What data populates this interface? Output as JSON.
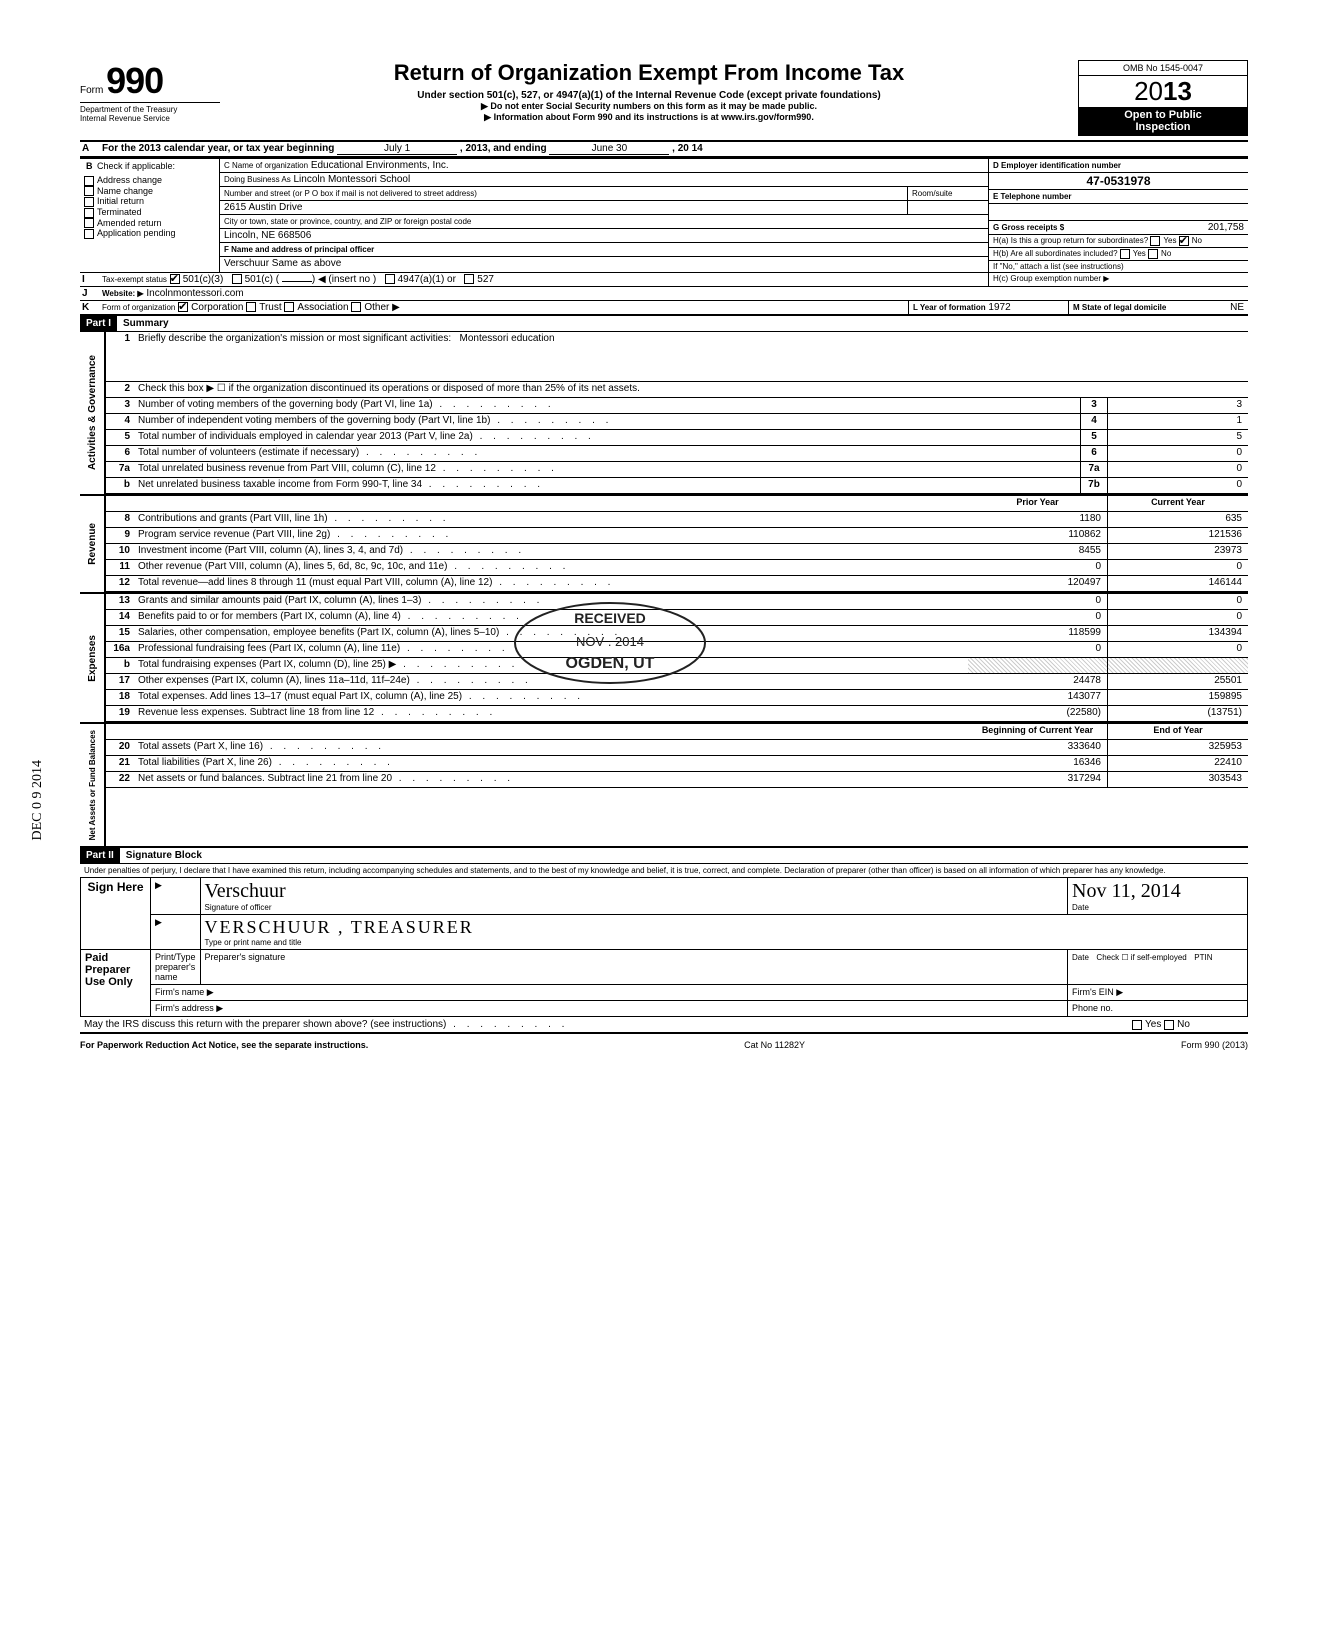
{
  "header": {
    "form_label": "Form",
    "form_number": "990",
    "title": "Return of Organization Exempt From Income Tax",
    "subtitle": "Under section 501(c), 527, or 4947(a)(1) of the Internal Revenue Code (except private foundations)",
    "sub2a": "▶ Do not enter Social Security numbers on this form as it may be made public.",
    "sub2b": "▶ Information about Form 990 and its instructions is at www.irs.gov/form990.",
    "omb": "OMB No 1545-0047",
    "year_prefix": "20",
    "year": "13",
    "open1": "Open to Public",
    "open2": "Inspection",
    "dept1": "Department of the Treasury",
    "dept2": "Internal Revenue Service"
  },
  "lineA": {
    "label": "For the 2013 calendar year, or tax year beginning",
    "begin": "July 1",
    "mid": ", 2013, and ending",
    "end": "June 30",
    "yr": ", 20  14"
  },
  "B": {
    "label": "Check if applicable:",
    "items": [
      "Address change",
      "Name change",
      "Initial return",
      "Terminated",
      "Amended return",
      "Application pending"
    ]
  },
  "C": {
    "label": "C Name of organization",
    "name": "Educational Environments, Inc.",
    "dba_label": "Doing Business As",
    "dba": "Lincoln Montessori School",
    "street_label": "Number and street (or P O  box if mail is not delivered to street address)",
    "street": "2615 Austin Drive",
    "room_label": "Room/suite",
    "city_label": "City or town, state or province, country, and ZIP or foreign postal code",
    "city": "Lincoln, NE 668506",
    "F_label": "F Name and address of principal officer",
    "F_name": "Verschuur  Same as above"
  },
  "D": {
    "label": "D Employer identification number",
    "value": "47-0531978"
  },
  "E": {
    "label": "E Telephone number"
  },
  "G": {
    "label": "G Gross receipts $",
    "value": "201,758"
  },
  "H": {
    "a": "H(a) Is this a group return for subordinates?",
    "b": "H(b) Are all subordinates included?",
    "note": "If \"No,\" attach a list (see instructions)",
    "c": "H(c) Group exemption number ▶",
    "yes": "Yes",
    "no": "No"
  },
  "I": {
    "label": "Tax-exempt status",
    "o1": "501(c)(3)",
    "o2": "501(c) (",
    "o2suf": ") ◀ (insert no )",
    "o3": "4947(a)(1) or",
    "o4": "527"
  },
  "J": {
    "label": "Website: ▶",
    "value": "Incolnmontessori.com"
  },
  "K": {
    "label": "Form of organization",
    "o1": "Corporation",
    "o2": "Trust",
    "o3": "Association",
    "o4": "Other ▶",
    "L_label": "L Year of formation",
    "L_val": "1972",
    "M_label": "M State of legal domicile",
    "M_val": "NE"
  },
  "parts": {
    "p1": "Part I",
    "p1t": "Summary",
    "p2": "Part II",
    "p2t": "Signature Block"
  },
  "summary": {
    "q1": "Briefly describe the organization's mission or most significant activities:",
    "q1v": "Montessori education",
    "q2": "Check this box ▶ ☐ if the organization discontinued its operations or disposed of more than 25% of its net assets.",
    "rows_gov": [
      {
        "n": "3",
        "label": "Number of voting members of the governing body (Part VI, line 1a)",
        "box": "3",
        "v": "3"
      },
      {
        "n": "4",
        "label": "Number of independent voting members of the governing body (Part VI, line 1b)",
        "box": "4",
        "v": "1"
      },
      {
        "n": "5",
        "label": "Total number of individuals employed in calendar year 2013 (Part V, line 2a)",
        "box": "5",
        "v": "5"
      },
      {
        "n": "6",
        "label": "Total number of volunteers (estimate if necessary)",
        "box": "6",
        "v": "0"
      },
      {
        "n": "7a",
        "label": "Total unrelated business revenue from Part VIII, column (C), line 12",
        "box": "7a",
        "v": "0"
      },
      {
        "n": "b",
        "label": "Net unrelated business taxable income from Form 990-T, line 34",
        "box": "7b",
        "v": "0"
      }
    ],
    "col_prior": "Prior Year",
    "col_current": "Current Year",
    "rows_rev": [
      {
        "n": "8",
        "label": "Contributions and grants (Part VIII, line 1h)",
        "p": "1180",
        "c": "635"
      },
      {
        "n": "9",
        "label": "Program service revenue (Part VIII, line 2g)",
        "p": "110862",
        "c": "121536"
      },
      {
        "n": "10",
        "label": "Investment income (Part VIII, column (A), lines 3, 4, and 7d)",
        "p": "8455",
        "c": "23973"
      },
      {
        "n": "11",
        "label": "Other revenue (Part VIII, column (A), lines 5, 6d, 8c, 9c, 10c, and 11e)",
        "p": "0",
        "c": "0"
      },
      {
        "n": "12",
        "label": "Total revenue—add lines 8 through 11 (must equal Part VIII, column (A), line 12)",
        "p": "120497",
        "c": "146144"
      }
    ],
    "rows_exp": [
      {
        "n": "13",
        "label": "Grants and similar amounts paid (Part IX, column (A), lines 1–3)",
        "p": "0",
        "c": "0"
      },
      {
        "n": "14",
        "label": "Benefits paid to or for members (Part IX, column (A), line 4)",
        "p": "0",
        "c": "0"
      },
      {
        "n": "15",
        "label": "Salaries, other compensation, employee benefits (Part IX, column (A), lines 5–10)",
        "p": "118599",
        "c": "134394"
      },
      {
        "n": "16a",
        "label": "Professional fundraising fees (Part IX, column (A), line 11e)",
        "p": "0",
        "c": "0"
      },
      {
        "n": "b",
        "label": "Total fundraising expenses (Part IX, column (D), line 25) ▶",
        "p": "",
        "c": "",
        "shaded": true
      },
      {
        "n": "17",
        "label": "Other expenses (Part IX, column (A), lines 11a–11d, 11f–24e)",
        "p": "24478",
        "c": "25501"
      },
      {
        "n": "18",
        "label": "Total expenses. Add lines 13–17 (must equal Part IX, column (A), line 25)",
        "p": "143077",
        "c": "159895"
      },
      {
        "n": "19",
        "label": "Revenue less expenses. Subtract line 18 from line 12",
        "p": "(22580)",
        "c": "(13751)"
      }
    ],
    "col_begin": "Beginning of Current Year",
    "col_end": "End of Year",
    "rows_net": [
      {
        "n": "20",
        "label": "Total assets (Part X, line 16)",
        "p": "333640",
        "c": "325953"
      },
      {
        "n": "21",
        "label": "Total liabilities (Part X, line 26)",
        "p": "16346",
        "c": "22410"
      },
      {
        "n": "22",
        "label": "Net assets or fund balances. Subtract line 21 from line 20",
        "p": "317294",
        "c": "303543"
      }
    ],
    "side_gov": "Activities & Governance",
    "side_rev": "Revenue",
    "side_exp": "Expenses",
    "side_net": "Net Assets or\nFund Balances"
  },
  "sig": {
    "perjury": "Under penalties of perjury, I declare that I have examined this return, including accompanying schedules and statements, and to the best of my knowledge and belief, it is true, correct, and complete. Declaration of preparer (other than officer) is based on all information of which preparer has any knowledge.",
    "sign_here": "Sign Here",
    "sig_label": "Signature of officer",
    "date_label": "Date",
    "sig_hand": "Verschuur",
    "date_hand": "Nov 11, 2014",
    "name_label": "Type or print name and title",
    "name_hand": "VERSCHUUR ,  TREASURER",
    "paid": "Paid Preparer Use Only",
    "pp_name": "Print/Type preparer's name",
    "pp_sig": "Preparer's signature",
    "pp_check": "Check ☐ if self-employed",
    "ptin": "PTIN",
    "firm_name": "Firm's name   ▶",
    "firm_ein": "Firm's EIN ▶",
    "firm_addr": "Firm's address ▶",
    "phone": "Phone no.",
    "discuss": "May the IRS discuss this return with the preparer shown above? (see instructions)",
    "yes": "Yes",
    "no": "No"
  },
  "footer": {
    "left": "For Paperwork Reduction Act Notice, see the separate instructions.",
    "mid": "Cat No 11282Y",
    "right": "Form 990 (2013)"
  },
  "stamp": {
    "l1": "RECEIVED",
    "l2": "NOV  .  2014",
    "l3": "OGDEN, UT"
  },
  "margin_date": "DEC 0 9 2014"
}
